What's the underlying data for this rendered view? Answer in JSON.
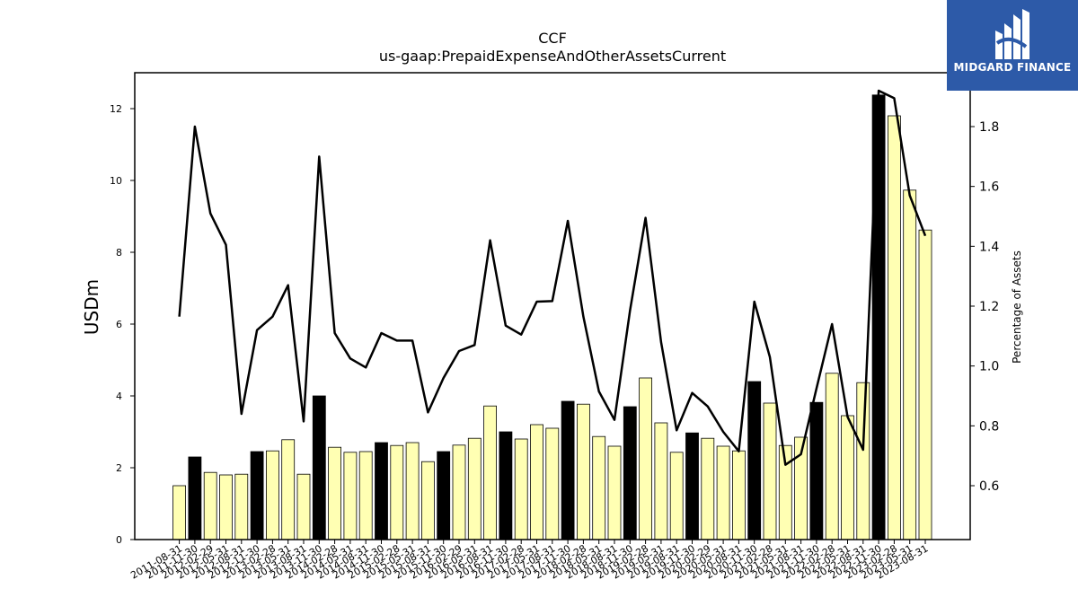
{
  "chart_data": {
    "type": "bar",
    "title": "CCF",
    "subtitle": "us-gaap:PrepaidExpenseAndOtherAssetsCurrent",
    "ylabel": "USDm",
    "y2label": "Percentage of Assets",
    "ylim": [
      0,
      13
    ],
    "y2lim": [
      0.42,
      1.98
    ],
    "yticks": [
      0,
      2,
      4,
      6,
      8,
      10,
      12
    ],
    "y2ticks": [
      0.6,
      0.8,
      1.0,
      1.2,
      1.4,
      1.6,
      1.8
    ],
    "categories": [
      "2011-08-31",
      "2011-11-30",
      "2012-02-29",
      "2012-05-31",
      "2012-08-31",
      "2012-11-30",
      "2013-02-28",
      "2013-05-31",
      "2013-08-31",
      "2013-11-30",
      "2014-02-28",
      "2014-05-31",
      "2014-08-31",
      "2014-11-30",
      "2015-02-28",
      "2015-05-31",
      "2015-08-31",
      "2015-11-30",
      "2016-02-29",
      "2016-05-31",
      "2016-08-31",
      "2016-11-30",
      "2017-02-28",
      "2017-05-31",
      "2017-08-31",
      "2017-11-30",
      "2018-02-28",
      "2018-05-31",
      "2018-08-31",
      "2018-11-30",
      "2019-02-28",
      "2019-05-31",
      "2019-08-31",
      "2019-11-30",
      "2020-02-29",
      "2020-05-31",
      "2020-08-31",
      "2020-11-30",
      "2021-02-28",
      "2021-05-31",
      "2021-08-31",
      "2021-11-30",
      "2022-02-28",
      "2022-05-31",
      "2022-08-31",
      "2022-11-30",
      "2023-02-28",
      "2023-05-31",
      "2023-08-31"
    ],
    "series": [
      {
        "kind": "bar",
        "values": [
          1.5,
          2.3,
          1.87,
          1.8,
          1.82,
          2.45,
          2.47,
          2.78,
          1.82,
          4.0,
          2.57,
          2.43,
          2.45,
          2.7,
          2.62,
          2.7,
          2.17,
          2.45,
          2.63,
          2.82,
          3.72,
          3.0,
          2.8,
          3.2,
          3.1,
          3.85,
          3.77,
          2.87,
          2.6,
          3.7,
          4.5,
          3.25,
          2.43,
          2.97,
          2.82,
          2.6,
          2.47,
          4.4,
          3.8,
          2.62,
          2.85,
          3.82,
          4.63,
          3.45,
          4.37,
          12.38,
          11.8,
          9.73,
          8.62
        ],
        "highlight": [
          false,
          true,
          false,
          false,
          false,
          true,
          false,
          false,
          false,
          true,
          false,
          false,
          false,
          true,
          false,
          false,
          false,
          true,
          false,
          false,
          false,
          true,
          false,
          false,
          false,
          true,
          false,
          false,
          false,
          true,
          false,
          false,
          false,
          true,
          false,
          false,
          false,
          true,
          false,
          false,
          false,
          true,
          false,
          false,
          false,
          true,
          false,
          false,
          false
        ]
      },
      {
        "kind": "line",
        "axis": "right",
        "values": [
          1.165,
          1.8,
          1.51,
          1.405,
          0.84,
          1.12,
          1.165,
          1.27,
          0.815,
          1.7,
          1.11,
          1.025,
          0.995,
          1.11,
          1.085,
          1.085,
          0.845,
          0.96,
          1.05,
          1.07,
          1.42,
          1.135,
          1.105,
          1.215,
          1.217,
          1.485,
          1.165,
          0.915,
          0.82,
          1.185,
          1.495,
          1.08,
          0.785,
          0.91,
          0.865,
          0.78,
          0.715,
          1.215,
          1.03,
          0.67,
          0.705,
          0.925,
          1.14,
          0.83,
          0.72,
          1.92,
          1.895,
          1.57,
          1.435
        ]
      }
    ],
    "colors": {
      "bar": "#ffffb3",
      "bar_highlight": "#000000",
      "bar_edge": "#000000",
      "line": "#000000"
    }
  },
  "logo": {
    "text": "MIDGARD FINANCE",
    "bg": "#2d5aa8"
  }
}
